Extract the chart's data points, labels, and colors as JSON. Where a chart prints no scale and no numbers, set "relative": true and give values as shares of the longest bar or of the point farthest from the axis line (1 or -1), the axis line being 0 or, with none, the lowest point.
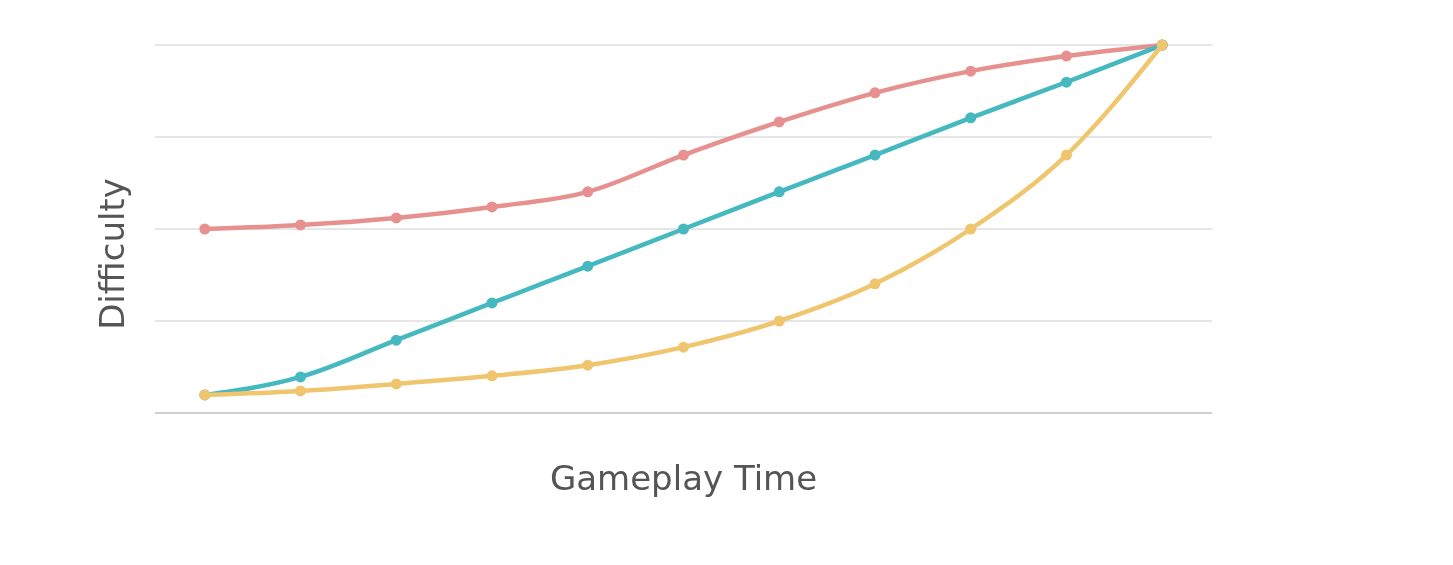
{
  "chart_data": {
    "type": "line",
    "relative": true,
    "xlabel": "Gameplay Time",
    "ylabel": "Difficulty",
    "categories": [
      null,
      null,
      null,
      null,
      null,
      null,
      null,
      null,
      null,
      null,
      null
    ],
    "grid": true,
    "marker": "circle",
    "line_style": "solid",
    "series": [
      {
        "color": "#e6918f",
        "values": [
          0.5,
          0.511,
          0.53,
          0.56,
          0.601,
          0.701,
          0.791,
          0.87,
          0.929,
          0.97,
          1
        ]
      },
      {
        "color": "#45b8c0",
        "values": [
          0.049,
          0.098,
          0.198,
          0.299,
          0.399,
          0.5,
          0.601,
          0.701,
          0.802,
          0.899,
          1
        ]
      },
      {
        "color": "#efc56e",
        "values": [
          0.049,
          0.06,
          0.079,
          0.101,
          0.13,
          0.179,
          0.25,
          0.351,
          0.5,
          0.701,
          1
        ]
      }
    ]
  }
}
